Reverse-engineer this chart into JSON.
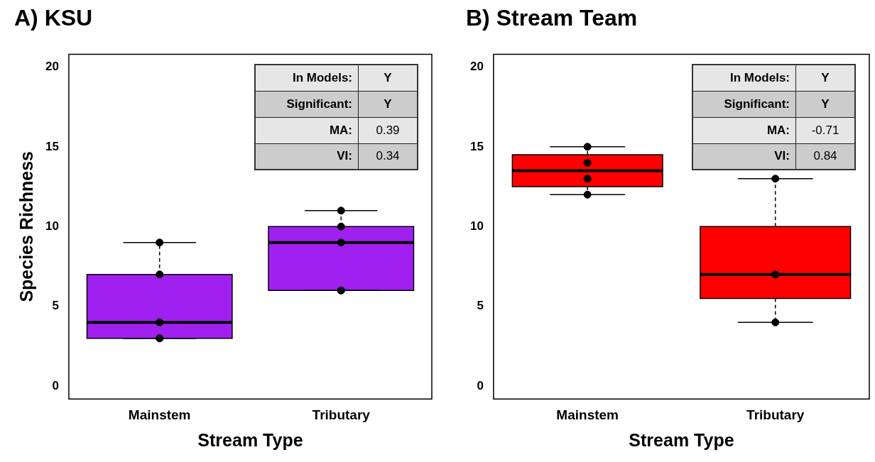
{
  "chart_data": [
    {
      "type": "box",
      "title": "A) KSU",
      "xlabel": "Stream Type",
      "ylabel": "Species Richness",
      "categories": [
        "Mainstem",
        "Tributary"
      ],
      "ylim": [
        -0.8,
        20.8
      ],
      "yticks": [
        0,
        5,
        10,
        15,
        20
      ],
      "grid": false,
      "legend": false,
      "annotations": [
        "In Models:",
        "Y",
        "Significant:",
        "Y",
        "MA:",
        "0.39",
        "VI:",
        "0.34"
      ],
      "series": [
        {
          "color": "#a020f0",
          "boxes": [
            {
              "low": 3,
              "q1": 3,
              "median": 4,
              "q3": 7,
              "high": 9
            },
            {
              "low": 6,
              "q1": 6,
              "median": 9,
              "q3": 10,
              "high": 11
            }
          ]
        },
        {
          "type": "scatter",
          "color": "#000000",
          "marker": "circle",
          "x": [
            "Mainstem",
            "Mainstem",
            "Mainstem",
            "Mainstem",
            "Mainstem",
            "Mainstem",
            "Tributary",
            "Tributary",
            "Tributary",
            "Tributary",
            "Tributary"
          ],
          "values": [
            3,
            3,
            4,
            4,
            7,
            9,
            6,
            6,
            9,
            10,
            11
          ]
        }
      ]
    },
    {
      "type": "box",
      "title": "B) Stream Team",
      "xlabel": "Stream Type",
      "categories": [
        "Mainstem",
        "Tributary"
      ],
      "ylim": [
        -0.8,
        20.8
      ],
      "yticks": [
        0,
        5,
        10,
        15,
        20
      ],
      "grid": false,
      "legend": false,
      "annotations": [
        "In Models:",
        "Y",
        "Significant:",
        "Y",
        "MA:",
        "-0.71",
        "VI:",
        "0.84"
      ],
      "series": [
        {
          "color": "#ff0000",
          "boxes": [
            {
              "low": 12,
              "q1": 12.5,
              "median": 13.5,
              "q3": 14.5,
              "high": 15
            },
            {
              "low": 4,
              "q1": 5.5,
              "median": 7,
              "q3": 10,
              "high": 13
            }
          ]
        },
        {
          "type": "scatter",
          "color": "#000000",
          "marker": "circle",
          "x": [
            "Mainstem",
            "Mainstem",
            "Mainstem",
            "Mainstem",
            "Tributary",
            "Tributary",
            "Tributary"
          ],
          "values": [
            15,
            14,
            13,
            12,
            13,
            7,
            4
          ]
        }
      ]
    }
  ]
}
